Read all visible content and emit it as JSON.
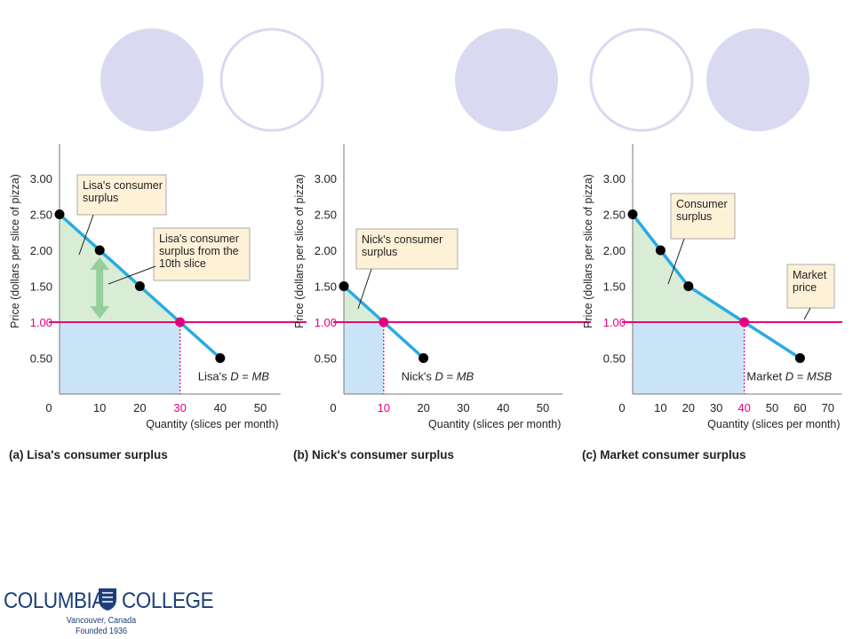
{
  "colors": {
    "demand_line": "#29abe2",
    "market_price_line": "#e6007e",
    "surplus_fill": "#d8ecd6",
    "expenditure_fill": "#c9e4f7",
    "callout_fill": "#fdf1d8",
    "arrow": "#96cf9c",
    "deco_circle_fill": "#d9d9f1",
    "deco_circle_stroke": "#d9d9f1",
    "logo_blue": "#1c3f7a"
  },
  "logo": {
    "name_left": "COLUMBIA",
    "name_right": "COLLEGE",
    "location": "Vancouver, Canada",
    "founded": "Founded 1936"
  },
  "chart_data": [
    {
      "type": "line",
      "panel_title": "(a) Lisa's consumer surplus",
      "xlabel": "Quantity (slices per month)",
      "ylabel": "Price (dollars per slice of pizza)",
      "xlim": [
        0,
        55
      ],
      "ylim": [
        0,
        3.4
      ],
      "x_ticks": [
        "0",
        "10",
        "20",
        "30",
        "40",
        "50"
      ],
      "y_ticks": [
        "0.50",
        "1.00",
        "1.50",
        "2.00",
        "2.50",
        "3.00"
      ],
      "highlight_x_tick": "30",
      "series": [
        {
          "name": "Lisa's D = MB",
          "x": [
            0,
            10,
            20,
            30,
            40
          ],
          "y": [
            2.5,
            2.0,
            1.5,
            1.0,
            0.5
          ]
        }
      ],
      "market_price": 1.0,
      "equilibrium": {
        "x": 30,
        "y": 1.0
      },
      "curve_label": {
        "prefix": "Lisa's ",
        "italic": "D",
        "suffix": " = ",
        "italic2": "MB"
      },
      "callouts": [
        {
          "lines": [
            "Lisa's consumer",
            "surplus"
          ]
        },
        {
          "lines": [
            "Lisa's consumer",
            "surplus from the",
            "10th slice"
          ]
        }
      ],
      "tenth_slice_arrow": {
        "x": 10,
        "from": 2.0,
        "to": 1.0
      }
    },
    {
      "type": "line",
      "panel_title": "(b) Nick's consumer surplus",
      "xlabel": "Quantity (slices per month)",
      "ylabel": "Price (dollars per slice of pizza)",
      "xlim": [
        0,
        55
      ],
      "ylim": [
        0,
        3.4
      ],
      "x_ticks": [
        "0",
        "10",
        "20",
        "30",
        "40",
        "50"
      ],
      "y_ticks": [
        "0.50",
        "1.00",
        "1.50",
        "2.00",
        "2.50",
        "3.00"
      ],
      "highlight_x_tick": "10",
      "series": [
        {
          "name": "Nick's D = MB",
          "x": [
            0,
            10,
            20
          ],
          "y": [
            1.5,
            1.0,
            0.5
          ]
        }
      ],
      "market_price": 1.0,
      "equilibrium": {
        "x": 10,
        "y": 1.0
      },
      "curve_label": {
        "prefix": "Nick's ",
        "italic": "D",
        "suffix": " = ",
        "italic2": "MB"
      },
      "callouts": [
        {
          "lines": [
            "Nick's consumer",
            "surplus"
          ]
        }
      ]
    },
    {
      "type": "line",
      "panel_title": "(c) Market consumer surplus",
      "xlabel": "Quantity (slices per month)",
      "ylabel": "Price (dollars per slice of pizza)",
      "xlim": [
        0,
        75
      ],
      "ylim": [
        0,
        3.4
      ],
      "x_ticks": [
        "0",
        "10",
        "20",
        "30",
        "40",
        "50",
        "60",
        "70"
      ],
      "y_ticks": [
        "0.50",
        "1.00",
        "1.50",
        "2.00",
        "2.50",
        "3.00"
      ],
      "highlight_x_tick": "40",
      "series": [
        {
          "name": "Market D = MSB",
          "x": [
            0,
            10,
            20,
            40,
            60
          ],
          "y": [
            2.5,
            2.0,
            1.5,
            1.0,
            0.5
          ]
        }
      ],
      "market_price": 1.0,
      "equilibrium": {
        "x": 40,
        "y": 1.0
      },
      "curve_label": {
        "prefix": "Market ",
        "italic": "D",
        "suffix": " = ",
        "italic2": "MSB"
      },
      "callouts": [
        {
          "lines": [
            "Consumer",
            "surplus"
          ]
        },
        {
          "lines": [
            "Market",
            "price"
          ]
        }
      ]
    }
  ]
}
